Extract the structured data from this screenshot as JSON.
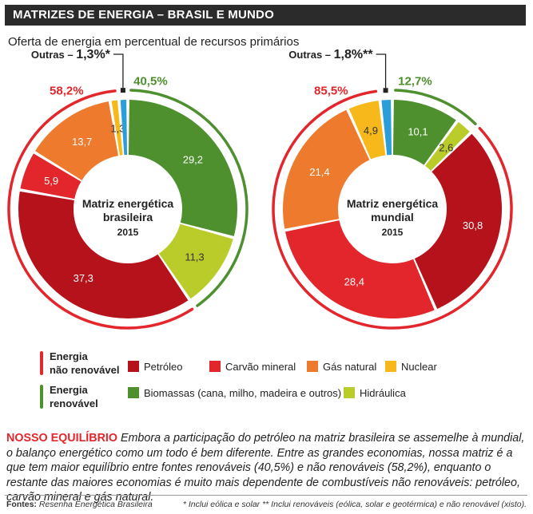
{
  "header": {
    "title": "MATRIZES DE ENERGIA – BRASIL E MUNDO",
    "subtitle": "Oferta de energia em percentual de recursos primários"
  },
  "colors": {
    "petroleo": "#b5121b",
    "carvao": "#e3262b",
    "gas": "#ee7a2e",
    "nuclear": "#f6b81a",
    "outras": "#2b9ed9",
    "biomassa": "#4e8f2e",
    "hidraulica": "#b9cc2a",
    "nonrenewable_arc": "#e3262b",
    "renewable_arc": "#4e8f2e"
  },
  "chart_data": [
    {
      "type": "pie",
      "title": "Matriz energética brasileira 2015",
      "center_lines": [
        "Matriz energética",
        "brasileira",
        "2015"
      ],
      "slices": [
        {
          "key": "biomassa",
          "value": 29.2,
          "label": "29,2"
        },
        {
          "key": "hidraulica",
          "value": 11.3,
          "label": "11,3"
        },
        {
          "key": "petroleo",
          "value": 37.3,
          "label": "37,3"
        },
        {
          "key": "carvao",
          "value": 5.9,
          "label": "5,9"
        },
        {
          "key": "gas",
          "value": 13.7,
          "label": "13,7"
        },
        {
          "key": "nuclear",
          "value": 1.3,
          "label": "1,3"
        },
        {
          "key": "outras",
          "value": 1.3,
          "label": ""
        }
      ],
      "renewable_total": "40,5%",
      "nonrenewable_total": "58,2%",
      "others_label": "Outras – ",
      "others_value": "1,3%*"
    },
    {
      "type": "pie",
      "title": "Matriz energética mundial 2015",
      "center_lines": [
        "Matriz energética",
        "mundial",
        "2015"
      ],
      "slices": [
        {
          "key": "biomassa",
          "value": 10.1,
          "label": "10,1"
        },
        {
          "key": "hidraulica",
          "value": 2.6,
          "label": "2,6"
        },
        {
          "key": "petroleo",
          "value": 30.8,
          "label": "30,8"
        },
        {
          "key": "carvao",
          "value": 28.4,
          "label": "28,4"
        },
        {
          "key": "gas",
          "value": 21.4,
          "label": "21,4"
        },
        {
          "key": "nuclear",
          "value": 4.9,
          "label": "4,9"
        },
        {
          "key": "outras",
          "value": 1.8,
          "label": ""
        }
      ],
      "renewable_total": "12,7%",
      "nonrenewable_total": "85,5%",
      "others_label": "Outras – ",
      "others_value": "1,8%**"
    }
  ],
  "legend": {
    "nonrenewable_label_1": "Energia",
    "nonrenewable_label_2": "não renovável",
    "renewable_label_1": "Energia",
    "renewable_label_2": "renovável",
    "petroleo": "Petróleo",
    "carvao": "Carvão mineral",
    "gas": "Gás natural",
    "nuclear": "Nuclear",
    "biomassa": "Biomassas (cana, milho, madeira e outros)",
    "hidraulica": "Hidráulica"
  },
  "note": {
    "head": "NOSSO EQUILÍBRIO",
    "text": " Embora a participação do petróleo na matriz brasileira se assemelhe à mundial, o balanço energético como um todo é bem diferente. Entre as grandes economias, nossa matriz é a que tem maior equilíbrio entre fontes renováveis (40,5%) e não renováveis (58,2%), enquanto o restante das maiores economias é muito mais dependente de combustíveis não renováveis: petróleo, carvão mineral e gás natural."
  },
  "footer": {
    "sources_label": "Fontes:",
    "sources_value": " Resenha Energética Brasileira",
    "footnotes": "* Inclui eólica e solar  ** Inclui renováveis (eólica, solar e geotérmica) e não renovável (xisto)."
  }
}
